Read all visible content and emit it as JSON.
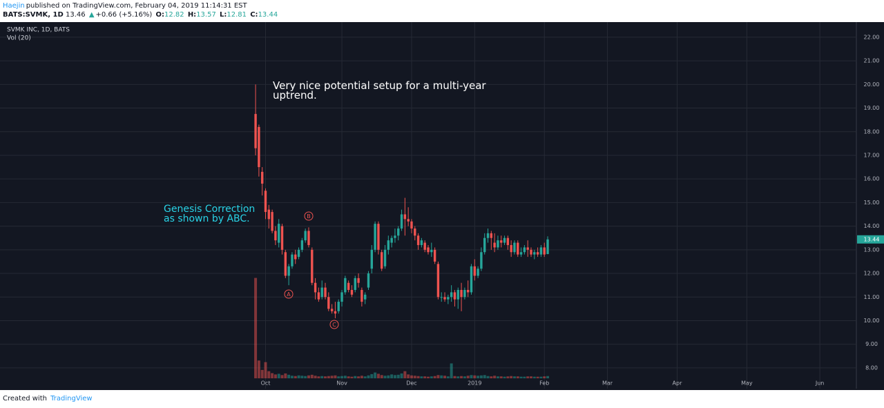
{
  "header": {
    "author": "Haejin",
    "published": "published on TradingView.com, February 04, 2019 11:14:31 EST",
    "symbol": "BATS:SVMK, 1D",
    "last": "13.46",
    "arrow": "▲",
    "change": "+0.66 (+5.16%)",
    "o_label": "O:",
    "o": "12.82",
    "h_label": "H:",
    "h": "13.57",
    "l_label": "L:",
    "l": "12.81",
    "c_label": "C:",
    "c": "13.44"
  },
  "footer": {
    "created": "Created with",
    "brand": "TradingView"
  },
  "chart_data": {
    "type": "candlestick",
    "title": "SVMK INC, 1D, BATS",
    "subtitle": "Vol (20)",
    "annotations": [
      "Very nice potential setup for a multi-year uptrend.",
      "Genesis Correction as shown by ABC.",
      "A",
      "B",
      "C"
    ],
    "up_color": "#26a69a",
    "down_color": "#ef5350",
    "annotation_color": "#ef5350",
    "background": "#131722",
    "grid": true,
    "open": [
      18.75,
      18.2,
      16.3,
      15.5,
      14.7,
      14.6,
      13.8,
      13.3,
      14.0,
      12.9,
      11.9,
      12.3,
      12.8,
      12.7,
      13.0,
      13.4,
      13.8,
      13.0,
      11.6,
      11.2,
      11.0,
      11.4,
      11.0,
      10.5,
      10.4,
      10.4,
      10.8,
      11.2,
      11.6,
      11.3,
      11.3,
      11.8,
      11.3,
      10.9,
      11.4,
      12.2,
      13.0,
      14.1,
      12.9,
      12.3,
      13.0,
      13.3,
      13.5,
      13.6,
      13.9,
      14.5,
      14.3,
      14.2,
      13.9,
      13.6,
      13.2,
      13.3,
      13.1,
      12.9,
      13.0,
      12.4,
      11.0,
      11.0,
      10.9,
      11.0,
      11.2,
      10.9,
      11.3,
      11.0,
      11.3,
      11.2,
      12.3,
      11.9,
      12.2,
      12.9,
      13.5,
      13.7,
      13.3,
      13.1,
      13.4,
      13.3,
      13.5,
      13.2,
      12.9,
      13.3,
      12.8,
      12.9,
      13.1,
      13.0,
      12.8,
      12.9,
      12.8,
      13.1,
      12.82
    ],
    "high": [
      20.0,
      18.3,
      16.5,
      15.6,
      14.9,
      14.7,
      14.0,
      14.3,
      14.1,
      13.0,
      12.4,
      12.9,
      13.0,
      13.1,
      13.5,
      13.9,
      13.95,
      13.1,
      11.8,
      11.4,
      11.7,
      11.6,
      11.2,
      10.7,
      10.8,
      10.9,
      11.3,
      11.9,
      11.7,
      11.5,
      11.9,
      12.0,
      11.4,
      11.2,
      12.1,
      13.2,
      14.2,
      14.2,
      13.0,
      13.2,
      13.6,
      13.6,
      13.9,
      14.0,
      14.7,
      15.2,
      14.8,
      14.3,
      14.0,
      13.7,
      13.5,
      13.4,
      13.2,
      13.3,
      13.1,
      12.5,
      11.2,
      11.2,
      11.1,
      11.5,
      11.3,
      11.4,
      11.6,
      11.4,
      11.7,
      12.4,
      12.6,
      12.3,
      13.1,
      13.7,
      13.9,
      13.8,
      13.7,
      13.6,
      13.6,
      13.6,
      13.6,
      13.4,
      13.4,
      13.4,
      13.1,
      13.2,
      13.4,
      13.1,
      13.0,
      13.1,
      13.2,
      13.3,
      13.57
    ],
    "low": [
      17.0,
      16.1,
      15.3,
      14.3,
      13.9,
      13.7,
      13.2,
      13.1,
      12.8,
      11.8,
      11.5,
      12.2,
      12.4,
      12.6,
      12.9,
      13.3,
      13.1,
      11.5,
      10.9,
      10.8,
      10.9,
      10.9,
      10.4,
      10.3,
      10.1,
      10.3,
      10.6,
      11.1,
      11.2,
      11.0,
      11.2,
      11.4,
      10.6,
      10.7,
      11.3,
      12.0,
      12.9,
      12.8,
      12.1,
      12.2,
      12.8,
      13.1,
      13.3,
      13.4,
      13.8,
      13.6,
      14.0,
      13.7,
      13.4,
      13.0,
      13.1,
      12.9,
      12.8,
      12.7,
      12.4,
      10.9,
      10.8,
      10.8,
      10.7,
      10.8,
      10.6,
      10.5,
      10.4,
      10.9,
      11.0,
      11.1,
      11.7,
      11.8,
      12.1,
      12.8,
      13.3,
      13.0,
      12.9,
      13.0,
      13.1,
      13.2,
      13.0,
      12.7,
      12.8,
      12.7,
      12.7,
      12.8,
      12.7,
      12.7,
      12.6,
      12.7,
      12.7,
      12.7,
      12.81
    ],
    "close": [
      17.3,
      16.5,
      15.8,
      14.6,
      14.3,
      13.8,
      13.4,
      14.1,
      13.0,
      11.9,
      12.3,
      12.8,
      12.6,
      13.0,
      13.4,
      13.8,
      13.2,
      11.6,
      11.2,
      10.9,
      11.4,
      11.0,
      10.5,
      10.4,
      10.3,
      10.8,
      11.2,
      11.8,
      11.3,
      11.1,
      11.8,
      11.6,
      10.8,
      11.1,
      12.0,
      13.0,
      14.1,
      13.0,
      12.2,
      13.0,
      13.4,
      13.5,
      13.6,
      13.9,
      14.5,
      14.3,
      14.2,
      13.9,
      13.6,
      13.2,
      13.4,
      13.0,
      12.9,
      13.0,
      12.5,
      11.0,
      11.0,
      10.9,
      11.0,
      11.2,
      10.9,
      11.3,
      11.0,
      11.3,
      11.2,
      12.3,
      11.9,
      12.2,
      12.9,
      13.5,
      13.7,
      13.5,
      13.1,
      13.4,
      13.3,
      13.5,
      13.2,
      12.9,
      13.3,
      12.8,
      12.9,
      13.1,
      13.0,
      12.8,
      12.9,
      12.8,
      13.1,
      12.8,
      13.44
    ],
    "volume": [
      31,
      5.5,
      2.6,
      5,
      2.2,
      1.6,
      1.2,
      1.4,
      1.0,
      1.5,
      1.1,
      0.8,
      0.7,
      0.9,
      0.8,
      0.7,
      0.9,
      1.1,
      0.8,
      0.6,
      0.7,
      0.6,
      0.7,
      0.8,
      0.9,
      0.6,
      0.7,
      0.8,
      0.6,
      0.5,
      0.7,
      0.6,
      0.8,
      0.6,
      0.9,
      1.3,
      1.8,
      1.4,
      1.0,
      0.8,
      0.9,
      1.2,
      1.0,
      1.1,
      1.5,
      2.2,
      1.2,
      0.9,
      0.8,
      0.7,
      0.6,
      0.6,
      0.5,
      0.6,
      0.7,
      1.0,
      0.9,
      0.8,
      0.6,
      4.6,
      0.7,
      0.6,
      0.7,
      0.6,
      0.8,
      1.0,
      0.9,
      0.8,
      0.9,
      1.0,
      0.7,
      0.6,
      0.8,
      0.6,
      0.6,
      0.5,
      0.6,
      0.7,
      0.6,
      0.6,
      0.5,
      0.5,
      0.6,
      0.6,
      0.5,
      0.5,
      0.5,
      0.6,
      0.7
    ],
    "volume_lim": [
      0,
      110
    ],
    "xlim": [
      -77,
      181
    ],
    "xticks": [
      {
        "value": 3,
        "label": "Oct"
      },
      {
        "value": 26,
        "label": "Nov"
      },
      {
        "value": 47,
        "label": "Dec"
      },
      {
        "value": 66,
        "label": "2019"
      },
      {
        "value": 87,
        "label": "Feb"
      },
      {
        "value": 106,
        "label": "Mar"
      },
      {
        "value": 127,
        "label": "Apr"
      },
      {
        "value": 148,
        "label": "May"
      },
      {
        "value": 170,
        "label": "Jun"
      }
    ],
    "ylim": [
      7.12,
      22.64
    ],
    "yticks": [
      {
        "value": 8,
        "label": "8.00"
      },
      {
        "value": 9,
        "label": "9.00"
      },
      {
        "value": 10,
        "label": "10.00"
      },
      {
        "value": 11,
        "label": "11.00"
      },
      {
        "value": 12,
        "label": "12.00"
      },
      {
        "value": 13,
        "label": "13.00"
      },
      {
        "value": 14,
        "label": "14.00"
      },
      {
        "value": 15,
        "label": "15.00"
      },
      {
        "value": 16,
        "label": "16.00"
      },
      {
        "value": 17,
        "label": "17.00"
      },
      {
        "value": 18,
        "label": "18.00"
      },
      {
        "value": 19,
        "label": "19.00"
      },
      {
        "value": 20,
        "label": "20.00"
      },
      {
        "value": 21,
        "label": "21.00"
      },
      {
        "value": 22,
        "label": "22.00"
      }
    ]
  }
}
